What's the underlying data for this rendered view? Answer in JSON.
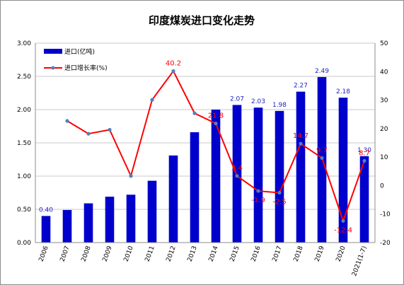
{
  "chart_data": {
    "type": "bar",
    "title": "印度煤炭进口变化走势",
    "categories": [
      "2006",
      "2007",
      "2008",
      "2009",
      "2010",
      "2011",
      "2012",
      "2013",
      "2014",
      "2015",
      "2016",
      "2017",
      "2018",
      "2019",
      "2020",
      "2021(1-7)"
    ],
    "series": [
      {
        "name": "进口(亿吨)",
        "type": "bar",
        "axis": "left",
        "color": "#0000cc",
        "values": [
          0.4,
          0.49,
          0.59,
          0.69,
          0.72,
          0.93,
          1.31,
          1.66,
          2.0,
          2.07,
          2.03,
          1.98,
          2.27,
          2.49,
          2.18,
          1.3
        ],
        "data_labels": [
          "0.40",
          null,
          null,
          null,
          null,
          null,
          null,
          null,
          null,
          "2.07",
          "2.03",
          "1.98",
          "2.27",
          "2.49",
          "2.18",
          "1.30"
        ]
      },
      {
        "name": "进口增长率(%)",
        "type": "line",
        "axis": "right",
        "color": "#ff0000",
        "marker_color": "#4f81bd",
        "values": [
          null,
          22.7,
          18.2,
          19.6,
          3.4,
          30.1,
          40.2,
          25.4,
          21.8,
          3.4,
          -1.9,
          -2.5,
          14.7,
          9.7,
          -12.4,
          8.7
        ],
        "data_labels": [
          null,
          null,
          null,
          null,
          null,
          null,
          "40.2",
          null,
          "21.8",
          "3.4",
          "-1.9",
          "-2.5",
          "14.7",
          "9.7",
          "-12.4",
          "8.7"
        ]
      }
    ],
    "y_left": {
      "min": 0,
      "max": 3,
      "step": 0.5,
      "ticks": [
        "0.00",
        "0.50",
        "1.00",
        "1.50",
        "2.00",
        "2.50",
        "3.00"
      ]
    },
    "y_right": {
      "min": -20,
      "max": 50,
      "step": 10,
      "ticks": [
        "-20",
        "-10",
        "0",
        "10",
        "20",
        "30",
        "40",
        "50"
      ]
    },
    "grid": true,
    "legend_position": "top-left"
  }
}
